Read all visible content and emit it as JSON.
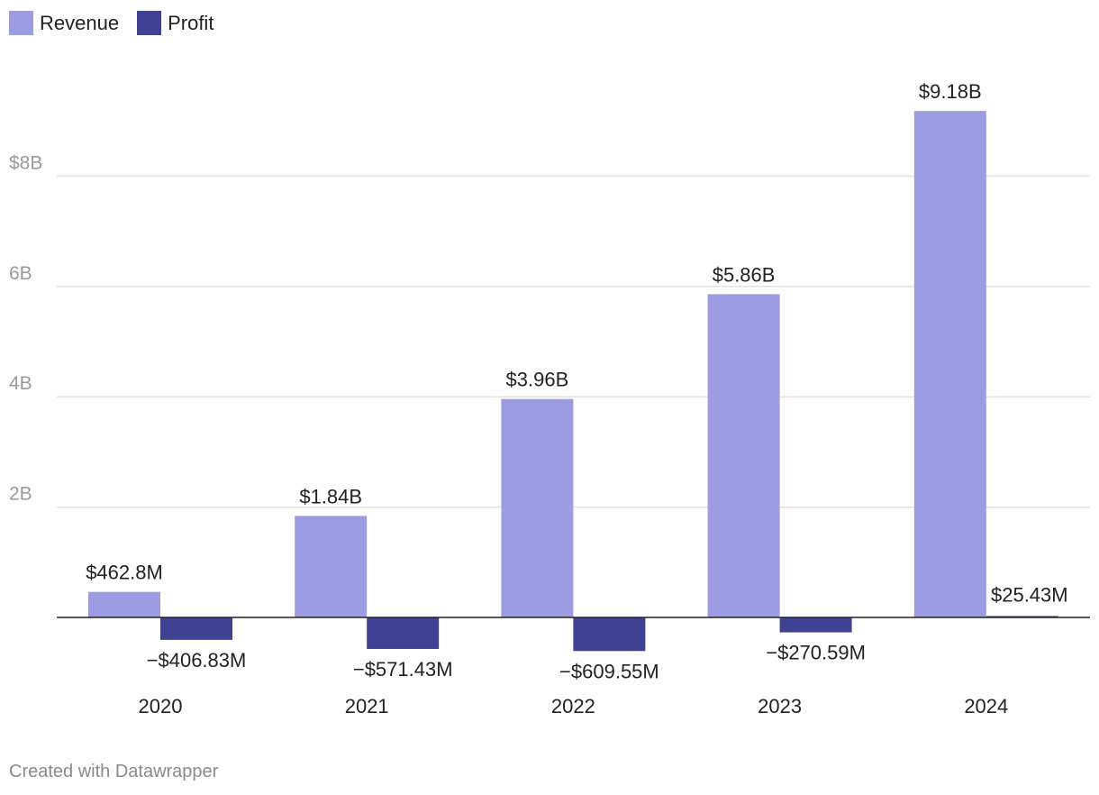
{
  "chart_data": {
    "type": "bar",
    "categories": [
      "2020",
      "2021",
      "2022",
      "2023",
      "2024"
    ],
    "series": [
      {
        "name": "Revenue",
        "color": "#9b9ce2",
        "values": [
          0.4628,
          1.84,
          3.96,
          5.86,
          9.18
        ],
        "labels": [
          "$462.8M",
          "$1.84B",
          "$3.96B",
          "$5.86B",
          "$9.18B"
        ]
      },
      {
        "name": "Profit",
        "color": "#3f4193",
        "values": [
          -0.40683,
          -0.57143,
          -0.60955,
          -0.27059,
          0.02543
        ],
        "labels": [
          "−$406.83M",
          "−$571.43M",
          "−$609.55M",
          "−$270.59M",
          "$25.43M"
        ]
      }
    ],
    "y_ticks": [
      {
        "value": 2,
        "label": "2B"
      },
      {
        "value": 4,
        "label": "4B"
      },
      {
        "value": 6,
        "label": "6B"
      },
      {
        "value": 8,
        "label": "$8B"
      }
    ],
    "ylim": [
      -0.9,
      10
    ],
    "unit": "billions of US dollars",
    "legend_position": "top-left",
    "grid": true
  },
  "footer": {
    "credit": "Created with Datawrapper"
  }
}
